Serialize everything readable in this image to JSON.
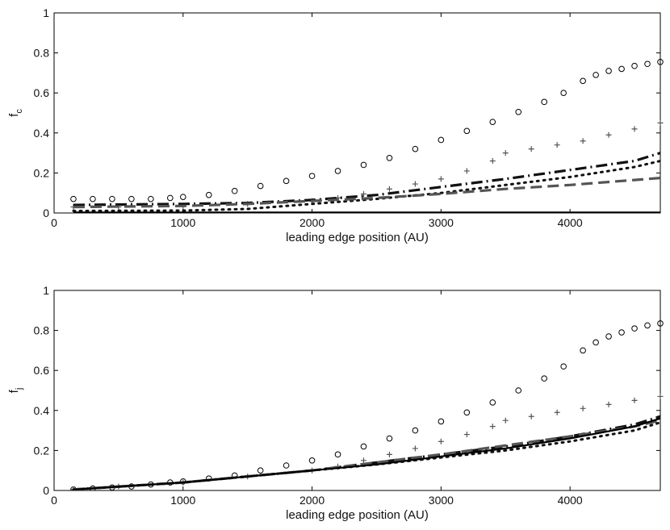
{
  "chart_data": [
    {
      "type": "line",
      "title": "",
      "xlabel": "leading edge position (AU)",
      "ylabel_main": "f",
      "ylabel_sub": "c",
      "xlim": [
        0,
        4700
      ],
      "ylim": [
        0,
        1
      ],
      "xticks": [
        0,
        1000,
        2000,
        3000,
        4000
      ],
      "xtick_labels": [
        "0",
        "1000",
        "2000",
        "3000",
        "4000"
      ],
      "yticks": [
        0,
        0.2,
        0.4,
        0.6,
        0.8,
        1
      ],
      "ytick_labels": [
        "0",
        "0.2",
        "0.4",
        "0.6",
        "0.8",
        "1"
      ],
      "grid": false,
      "series": [
        {
          "name": "circles",
          "style": "circle",
          "color": "#000000",
          "x": [
            150,
            300,
            450,
            600,
            750,
            900,
            1000,
            1200,
            1400,
            1600,
            1800,
            2000,
            2200,
            2400,
            2600,
            2800,
            3000,
            3200,
            3400,
            3600,
            3800,
            3950,
            4100,
            4200,
            4300,
            4400,
            4500,
            4600,
            4700
          ],
          "y": [
            0.07,
            0.07,
            0.07,
            0.07,
            0.07,
            0.075,
            0.08,
            0.09,
            0.11,
            0.135,
            0.16,
            0.185,
            0.21,
            0.24,
            0.275,
            0.32,
            0.365,
            0.41,
            0.455,
            0.505,
            0.555,
            0.6,
            0.66,
            0.69,
            0.71,
            0.72,
            0.735,
            0.745,
            0.755
          ]
        },
        {
          "name": "plus",
          "style": "plus",
          "color": "#555555",
          "x": [
            150,
            500,
            1000,
            1500,
            2000,
            2200,
            2400,
            2600,
            2800,
            3000,
            3200,
            3400,
            3500,
            3700,
            3900,
            4100,
            4300,
            4500,
            4700
          ],
          "y": [
            0.03,
            0.03,
            0.035,
            0.045,
            0.06,
            0.075,
            0.095,
            0.12,
            0.145,
            0.17,
            0.21,
            0.26,
            0.3,
            0.32,
            0.34,
            0.36,
            0.39,
            0.42,
            0.45
          ]
        },
        {
          "name": "dash-dot",
          "style": "dashdot",
          "color": "#111111",
          "x": [
            150,
            1000,
            1500,
            2000,
            2500,
            3000,
            3500,
            4000,
            4500,
            4700
          ],
          "y": [
            0.04,
            0.045,
            0.05,
            0.065,
            0.09,
            0.13,
            0.17,
            0.215,
            0.26,
            0.3
          ]
        },
        {
          "name": "dotted",
          "style": "dotted",
          "color": "#111111",
          "x": [
            150,
            1000,
            1500,
            2000,
            2500,
            3000,
            3500,
            4000,
            4500,
            4700
          ],
          "y": [
            0.01,
            0.012,
            0.02,
            0.045,
            0.07,
            0.1,
            0.14,
            0.18,
            0.23,
            0.26
          ]
        },
        {
          "name": "dashed",
          "style": "dashed",
          "color": "#555555",
          "x": [
            150,
            1000,
            1500,
            2000,
            2500,
            3000,
            3500,
            4000,
            4500,
            4700
          ],
          "y": [
            0.03,
            0.035,
            0.045,
            0.06,
            0.075,
            0.095,
            0.12,
            0.14,
            0.165,
            0.175
          ]
        },
        {
          "name": "solid",
          "style": "solid",
          "color": "#000000",
          "x": [
            150,
            4700
          ],
          "y": [
            0.003,
            0.003
          ]
        }
      ]
    },
    {
      "type": "line",
      "title": "",
      "xlabel": "leading edge position (AU)",
      "ylabel_main": "f",
      "ylabel_sub": "j",
      "xlim": [
        0,
        4700
      ],
      "ylim": [
        0,
        1
      ],
      "xticks": [
        0,
        1000,
        2000,
        3000,
        4000
      ],
      "xtick_labels": [
        "0",
        "1000",
        "2000",
        "3000",
        "4000"
      ],
      "yticks": [
        0,
        0.2,
        0.4,
        0.6,
        0.8,
        1
      ],
      "ytick_labels": [
        "0",
        "0.2",
        "0.4",
        "0.6",
        "0.8",
        "1"
      ],
      "grid": false,
      "series": [
        {
          "name": "circles",
          "style": "circle",
          "color": "#000000",
          "x": [
            150,
            300,
            450,
            600,
            750,
            900,
            1000,
            1200,
            1400,
            1600,
            1800,
            2000,
            2200,
            2400,
            2600,
            2800,
            3000,
            3200,
            3400,
            3600,
            3800,
            3950,
            4100,
            4200,
            4300,
            4400,
            4500,
            4600,
            4700
          ],
          "y": [
            0.005,
            0.01,
            0.015,
            0.02,
            0.03,
            0.04,
            0.045,
            0.06,
            0.075,
            0.1,
            0.125,
            0.15,
            0.18,
            0.22,
            0.26,
            0.3,
            0.345,
            0.39,
            0.44,
            0.5,
            0.56,
            0.62,
            0.7,
            0.74,
            0.77,
            0.79,
            0.81,
            0.825,
            0.835
          ]
        },
        {
          "name": "plus",
          "style": "plus",
          "color": "#555555",
          "x": [
            150,
            500,
            1000,
            1500,
            2000,
            2200,
            2400,
            2600,
            2800,
            3000,
            3200,
            3400,
            3500,
            3700,
            3900,
            4100,
            4300,
            4500,
            4700
          ],
          "y": [
            0.005,
            0.02,
            0.04,
            0.07,
            0.1,
            0.12,
            0.15,
            0.18,
            0.21,
            0.245,
            0.28,
            0.32,
            0.35,
            0.37,
            0.39,
            0.41,
            0.43,
            0.45,
            0.47
          ]
        },
        {
          "name": "dash-dot",
          "style": "dashdot",
          "color": "#111111",
          "x": [
            150,
            1000,
            1500,
            2000,
            2500,
            3000,
            3500,
            4000,
            4500,
            4700
          ],
          "y": [
            0.005,
            0.04,
            0.07,
            0.1,
            0.14,
            0.18,
            0.22,
            0.27,
            0.33,
            0.37
          ]
        },
        {
          "name": "dotted",
          "style": "dotted",
          "color": "#111111",
          "x": [
            150,
            1000,
            1500,
            2000,
            2500,
            3000,
            3500,
            4000,
            4500,
            4700
          ],
          "y": [
            0.005,
            0.04,
            0.07,
            0.1,
            0.13,
            0.165,
            0.2,
            0.245,
            0.3,
            0.34
          ]
        },
        {
          "name": "dashed",
          "style": "dashed",
          "color": "#555555",
          "x": [
            150,
            1000,
            1500,
            2000,
            2500,
            3000,
            3500,
            4000,
            4500,
            4700
          ],
          "y": [
            0.005,
            0.04,
            0.07,
            0.1,
            0.14,
            0.18,
            0.225,
            0.27,
            0.32,
            0.35
          ]
        },
        {
          "name": "solid",
          "style": "solid",
          "color": "#000000",
          "x": [
            150,
            1000,
            1500,
            2000,
            2500,
            3000,
            3500,
            4000,
            4500,
            4700
          ],
          "y": [
            0.005,
            0.04,
            0.07,
            0.1,
            0.13,
            0.17,
            0.21,
            0.26,
            0.32,
            0.36
          ]
        }
      ]
    }
  ]
}
